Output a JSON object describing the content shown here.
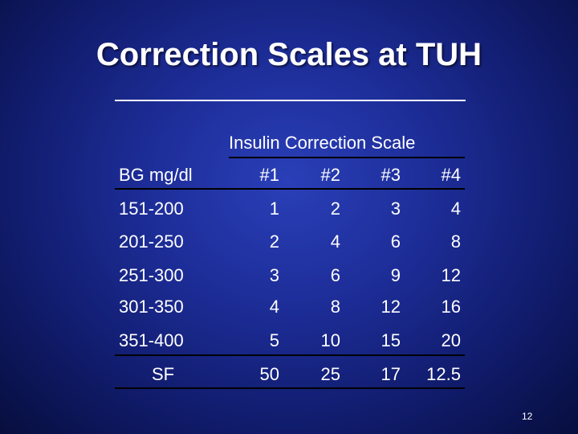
{
  "slide": {
    "title": "Correction Scales at TUH",
    "number": "12"
  },
  "table": {
    "heading": "Insulin Correction Scale",
    "columns": [
      "BG mg/dl",
      "#1",
      "#2",
      "#3",
      "#4"
    ],
    "rows": [
      [
        "151-200",
        "1",
        "2",
        "3",
        "4"
      ],
      [
        "201-250",
        "2",
        "4",
        "6",
        "8"
      ],
      [
        "251-300",
        "3",
        "6",
        "9",
        "12"
      ],
      [
        "301-350",
        "4",
        "8",
        "12",
        "16"
      ],
      [
        "351-400",
        "5",
        "10",
        "15",
        "20"
      ],
      [
        "SF",
        "50",
        "25",
        "17",
        "12.5"
      ]
    ]
  },
  "colors": {
    "background": "#1d2d98",
    "text": "#ffffff",
    "table_rules": "#000000"
  }
}
